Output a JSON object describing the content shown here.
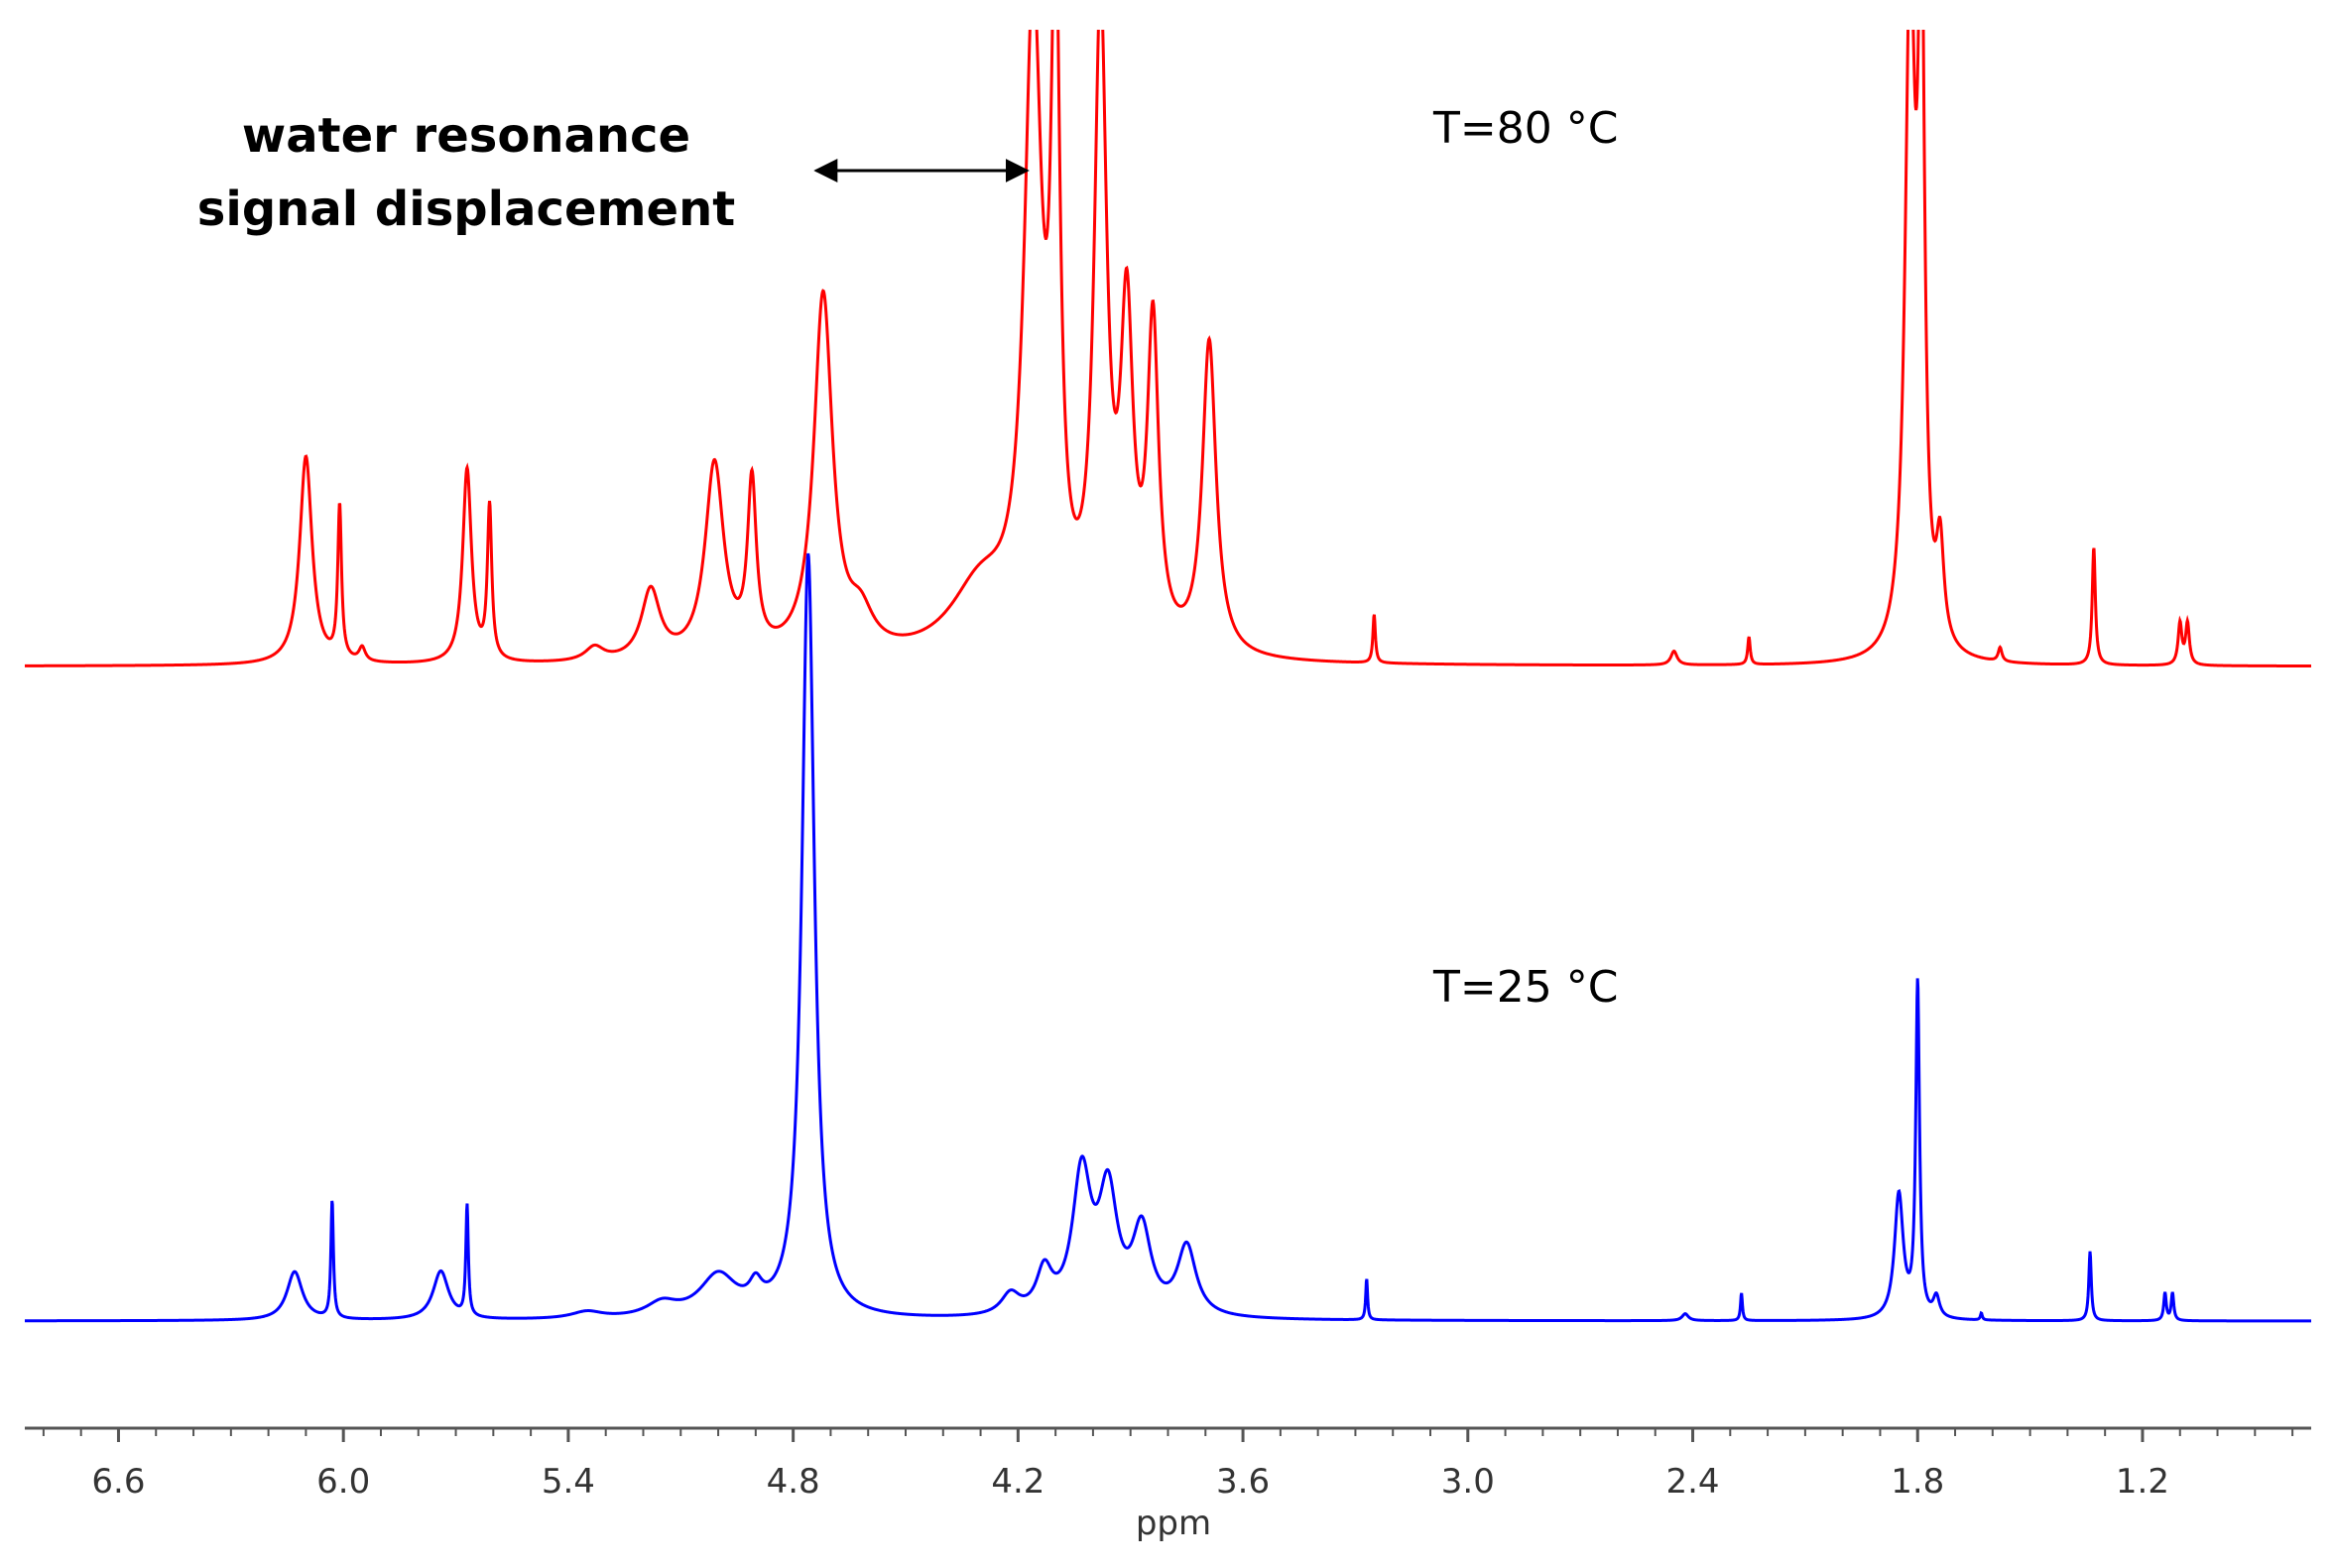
{
  "chart_data": {
    "type": "line",
    "title": "",
    "xlabel": "ppm",
    "ylabel": "",
    "x_reversed": true,
    "xlim": [
      6.85,
      0.75
    ],
    "grid": false,
    "x_ticks": [
      6.6,
      6.0,
      5.4,
      4.8,
      4.2,
      3.6,
      3.0,
      2.4,
      1.8,
      1.2
    ],
    "x_tick_labels": [
      "6.6",
      "6.0",
      "5.4",
      "4.8",
      "4.2",
      "3.6",
      "3.0",
      "2.4",
      "1.8",
      "1.2"
    ],
    "series": [
      {
        "name": "T=80 °C",
        "color": "#ff0000",
        "peaks": [
          {
            "ppm": 6.1,
            "height": 0.3,
            "width": 0.02
          },
          {
            "ppm": 6.01,
            "height": 0.22,
            "width": 0.006
          },
          {
            "ppm": 5.95,
            "height": 0.02,
            "width": 0.01
          },
          {
            "ppm": 5.67,
            "height": 0.28,
            "width": 0.014
          },
          {
            "ppm": 5.61,
            "height": 0.22,
            "width": 0.007
          },
          {
            "ppm": 5.33,
            "height": 0.02,
            "width": 0.03
          },
          {
            "ppm": 5.18,
            "height": 0.1,
            "width": 0.03
          },
          {
            "ppm": 5.01,
            "height": 0.28,
            "width": 0.03
          },
          {
            "ppm": 4.91,
            "height": 0.24,
            "width": 0.014
          },
          {
            "ppm": 4.72,
            "height": 0.52,
            "width": 0.03
          },
          {
            "ppm": 4.62,
            "height": 0.05,
            "width": 0.04
          },
          {
            "ppm": 4.3,
            "height": 0.1,
            "width": 0.1
          },
          {
            "ppm": 4.16,
            "height": 0.9,
            "width": 0.028
          },
          {
            "ppm": 4.1,
            "height": 0.9,
            "width": 0.014
          },
          {
            "ppm": 3.98,
            "height": 0.9,
            "width": 0.02
          },
          {
            "ppm": 3.91,
            "height": 0.45,
            "width": 0.02
          },
          {
            "ppm": 3.84,
            "height": 0.45,
            "width": 0.018
          },
          {
            "ppm": 3.69,
            "height": 0.45,
            "width": 0.022
          },
          {
            "ppm": 3.25,
            "height": 0.07,
            "width": 0.004
          },
          {
            "ppm": 2.45,
            "height": 0.02,
            "width": 0.01
          },
          {
            "ppm": 2.25,
            "height": 0.04,
            "width": 0.004
          },
          {
            "ppm": 1.82,
            "height": 0.95,
            "width": 0.016
          },
          {
            "ppm": 1.79,
            "height": 0.95,
            "width": 0.01
          },
          {
            "ppm": 1.74,
            "height": 0.14,
            "width": 0.012
          },
          {
            "ppm": 1.58,
            "height": 0.02,
            "width": 0.006
          },
          {
            "ppm": 1.33,
            "height": 0.17,
            "width": 0.005
          },
          {
            "ppm": 1.1,
            "height": 0.06,
            "width": 0.006
          },
          {
            "ppm": 1.08,
            "height": 0.06,
            "width": 0.006
          }
        ]
      },
      {
        "name": "T=25 °C",
        "color": "#0000ff",
        "peaks": [
          {
            "ppm": 6.13,
            "height": 0.07,
            "width": 0.025
          },
          {
            "ppm": 6.03,
            "height": 0.17,
            "width": 0.004
          },
          {
            "ppm": 5.74,
            "height": 0.07,
            "width": 0.025
          },
          {
            "ppm": 5.67,
            "height": 0.16,
            "width": 0.004
          },
          {
            "ppm": 5.35,
            "height": 0.01,
            "width": 0.05
          },
          {
            "ppm": 5.15,
            "height": 0.02,
            "width": 0.05
          },
          {
            "ppm": 5.0,
            "height": 0.06,
            "width": 0.06
          },
          {
            "ppm": 4.9,
            "height": 0.03,
            "width": 0.02
          },
          {
            "ppm": 4.76,
            "height": 1.1,
            "width": 0.02
          },
          {
            "ppm": 4.22,
            "height": 0.03,
            "width": 0.03
          },
          {
            "ppm": 4.13,
            "height": 0.06,
            "width": 0.025
          },
          {
            "ppm": 4.03,
            "height": 0.2,
            "width": 0.03
          },
          {
            "ppm": 3.96,
            "height": 0.17,
            "width": 0.03
          },
          {
            "ppm": 3.87,
            "height": 0.12,
            "width": 0.03
          },
          {
            "ppm": 3.75,
            "height": 0.1,
            "width": 0.03
          },
          {
            "ppm": 3.27,
            "height": 0.06,
            "width": 0.003
          },
          {
            "ppm": 2.42,
            "height": 0.01,
            "width": 0.01
          },
          {
            "ppm": 2.27,
            "height": 0.04,
            "width": 0.003
          },
          {
            "ppm": 1.85,
            "height": 0.18,
            "width": 0.014
          },
          {
            "ppm": 1.8,
            "height": 0.48,
            "width": 0.006
          },
          {
            "ppm": 1.75,
            "height": 0.03,
            "width": 0.01
          },
          {
            "ppm": 1.63,
            "height": 0.01,
            "width": 0.003
          },
          {
            "ppm": 1.34,
            "height": 0.1,
            "width": 0.004
          },
          {
            "ppm": 1.14,
            "height": 0.04,
            "width": 0.004
          },
          {
            "ppm": 1.12,
            "height": 0.04,
            "width": 0.004
          }
        ]
      }
    ],
    "annotations": [
      {
        "text": "water resonance\nsignal displacement",
        "type": "double-arrow",
        "from_ppm": 4.76,
        "to_ppm": 4.16
      }
    ]
  },
  "labels": {
    "water_line1": "water resonance",
    "water_line2": "signal displacement",
    "t80": "T=80 °C",
    "t25": "T=25 °C"
  }
}
